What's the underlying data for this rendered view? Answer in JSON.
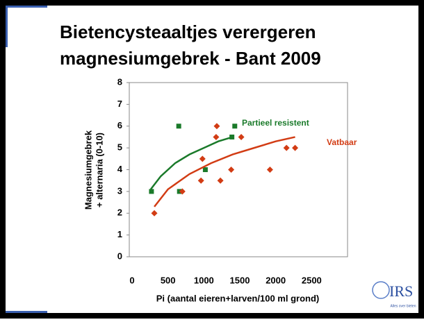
{
  "chart_data": {
    "type": "scatter",
    "title": [
      "Bietencysteaaltjes verergeren",
      "magnesiumgebrek - Bant 2009"
    ],
    "x_label": "Pi (aantal eieren+larven/100 ml grond)",
    "y_label": [
      "Magnesiumgebrek",
      "+ alternaria (0-10)"
    ],
    "xlim": [
      0,
      3000
    ],
    "xticks": [
      0,
      500,
      1000,
      1500,
      2000,
      2500
    ],
    "ylim": [
      0,
      8
    ],
    "yticks": [
      0,
      1,
      2,
      3,
      4,
      5,
      6,
      7,
      8
    ],
    "series": [
      {
        "name": "Partieel resistent",
        "color": "#1a7a2a",
        "marker": "square",
        "x": [
          270,
          650,
          660,
          1020,
          1390,
          1430
        ],
        "values": [
          3,
          6,
          3,
          4,
          5.5,
          6
        ],
        "trend": {
          "x": [
            260,
            400,
            600,
            800,
            1000,
            1200,
            1400
          ],
          "values": [
            3.1,
            3.7,
            4.3,
            4.7,
            5.0,
            5.3,
            5.5
          ]
        }
      },
      {
        "name": "Vatbaar",
        "color": "#d23c14",
        "marker": "diamond",
        "x": [
          310,
          700,
          960,
          980,
          1170,
          1180,
          1230,
          1380,
          1520,
          1920,
          2150,
          2270
        ],
        "values": [
          2,
          3,
          3.5,
          4.5,
          5.5,
          6,
          3.5,
          4,
          5.5,
          4,
          5,
          5
        ],
        "trend": {
          "x": [
            310,
            500,
            800,
            1100,
            1400,
            1700,
            2000,
            2270
          ],
          "values": [
            2.3,
            3.1,
            3.8,
            4.3,
            4.7,
            5.0,
            5.3,
            5.5
          ]
        }
      }
    ],
    "logo": {
      "text": "IRS",
      "tagline": "Alles over bieten"
    }
  }
}
